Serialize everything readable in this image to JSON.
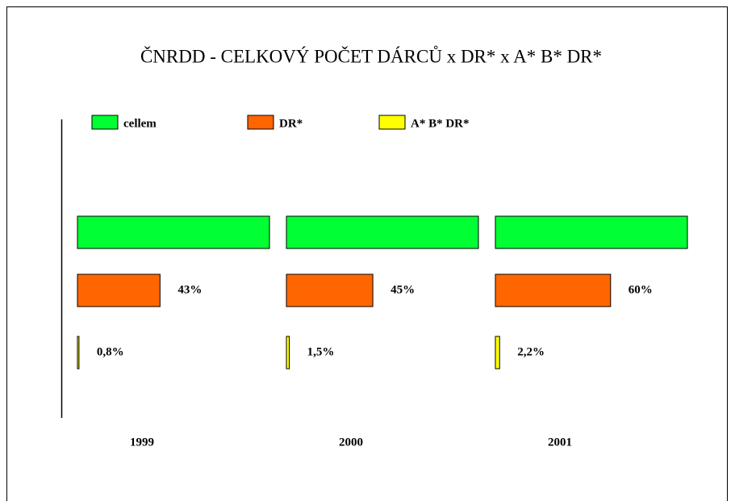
{
  "chart_data": {
    "type": "bar",
    "orientation": "horizontal",
    "title": "ČNRDD - CELKOVÝ POČET DÁRCŮ x DR* x A* B* DR*",
    "categories": [
      "1999",
      "2000",
      "2001"
    ],
    "xlim": [
      0,
      100
    ],
    "legend": "top",
    "series": [
      {
        "name": "cellem",
        "color": "#00ff33",
        "values": [
          100,
          100,
          100
        ]
      },
      {
        "name": "DR*",
        "color": "#ff6600",
        "values": [
          43,
          45,
          60
        ],
        "value_labels": [
          "43%",
          "45%",
          "60%"
        ]
      },
      {
        "name": "A* B* DR*",
        "color": "#ffff00",
        "values": [
          0.8,
          1.5,
          2.2
        ],
        "value_labels": [
          "0,8%",
          "1,5%",
          "2,2%"
        ]
      }
    ]
  }
}
